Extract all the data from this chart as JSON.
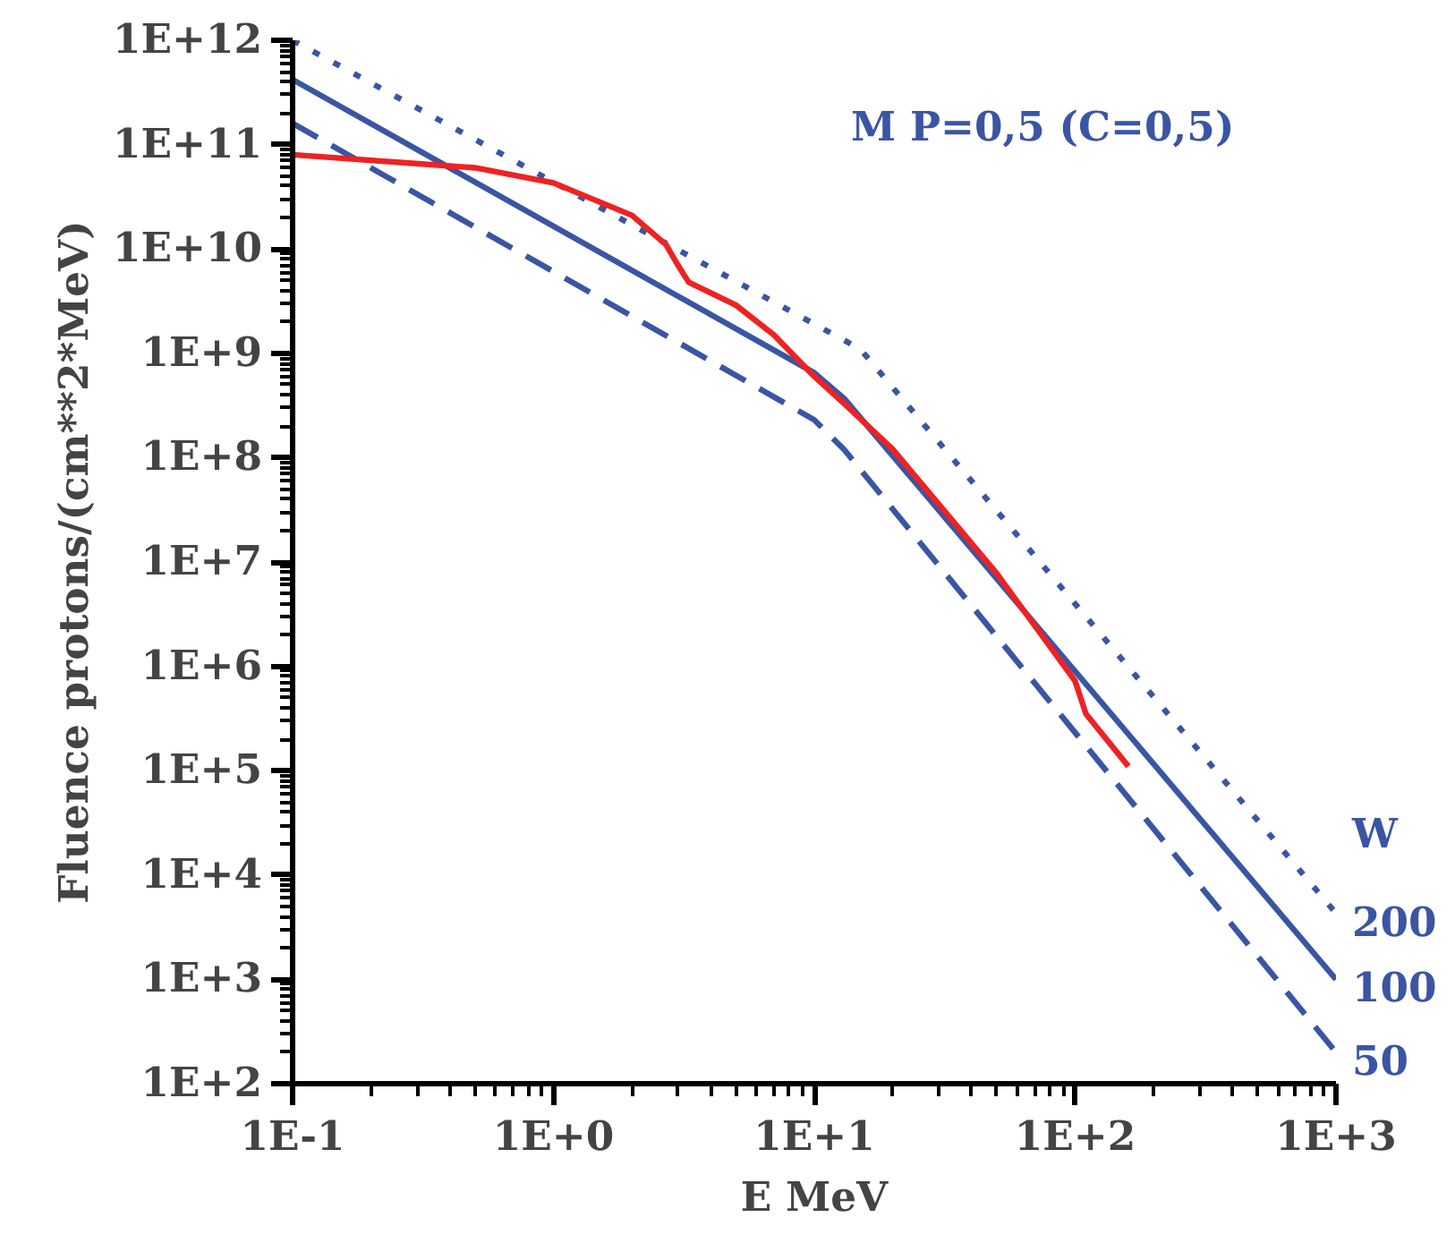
{
  "chart_data": {
    "type": "line",
    "xlabel": "E MeV",
    "ylabel": "Fluence protons/(cm**2*MeV)",
    "log": "xy",
    "grid": false,
    "marker": "none",
    "xlim": [
      0.1,
      1000
    ],
    "ylim": [
      100,
      1000000000000.0
    ],
    "xticks": [
      {
        "value": 0.1,
        "label": "1E-1"
      },
      {
        "value": 1,
        "label": "1E+0"
      },
      {
        "value": 10,
        "label": "1E+1"
      },
      {
        "value": 100,
        "label": "1E+2"
      },
      {
        "value": 1000,
        "label": "1E+3"
      }
    ],
    "yticks": [
      {
        "value": 100,
        "label": "1E+2"
      },
      {
        "value": 1000,
        "label": "1E+3"
      },
      {
        "value": 10000,
        "label": "1E+4"
      },
      {
        "value": 100000,
        "label": "1E+5"
      },
      {
        "value": 1000000,
        "label": "1E+6"
      },
      {
        "value": 10000000,
        "label": "1E+7"
      },
      {
        "value": 100000000,
        "label": "1E+8"
      },
      {
        "value": 1000000000,
        "label": "1E+9"
      },
      {
        "value": 10000000000,
        "label": "1E+10"
      },
      {
        "value": 100000000000,
        "label": "1E+11"
      },
      {
        "value": 1000000000000,
        "label": "1E+12"
      }
    ],
    "annotations": [
      "M   P=0,5 (C=0,5)",
      "W"
    ],
    "series": [
      {
        "name": "200",
        "color": "#3a55a4",
        "line_style": "dotted",
        "x": [
          0.1,
          15,
          1000
        ],
        "values": [
          1000000000000.0,
          1100000000.0,
          4300
        ]
      },
      {
        "name": "100",
        "color": "#3a55a4",
        "line_style": "solid",
        "x": [
          0.1,
          10,
          13,
          1000
        ],
        "values": [
          420000000000.0,
          650000000.0,
          370000000.0,
          1000
        ]
      },
      {
        "name": "50",
        "color": "#3a55a4",
        "line_style": "dashed",
        "x": [
          0.1,
          10,
          13,
          1000
        ],
        "values": [
          160000000000.0,
          230000000.0,
          120000000.0,
          200
        ]
      },
      {
        "color": "#ee2222",
        "line_style": "solid",
        "x": [
          0.1,
          0.5,
          1,
          2,
          2.7,
          3,
          3.3,
          5,
          7,
          10,
          13,
          20,
          50,
          100,
          110,
          160
        ],
        "values": [
          80000000000.0,
          60000000000.0,
          43000000000.0,
          21000000000.0,
          11000000000.0,
          7000000000.0,
          4800000000.0,
          2900000000.0,
          1500000000.0,
          600000000.0,
          330000000.0,
          120000000.0,
          7800000.0,
          720000.0,
          350000.0,
          110000.0
        ]
      }
    ]
  }
}
